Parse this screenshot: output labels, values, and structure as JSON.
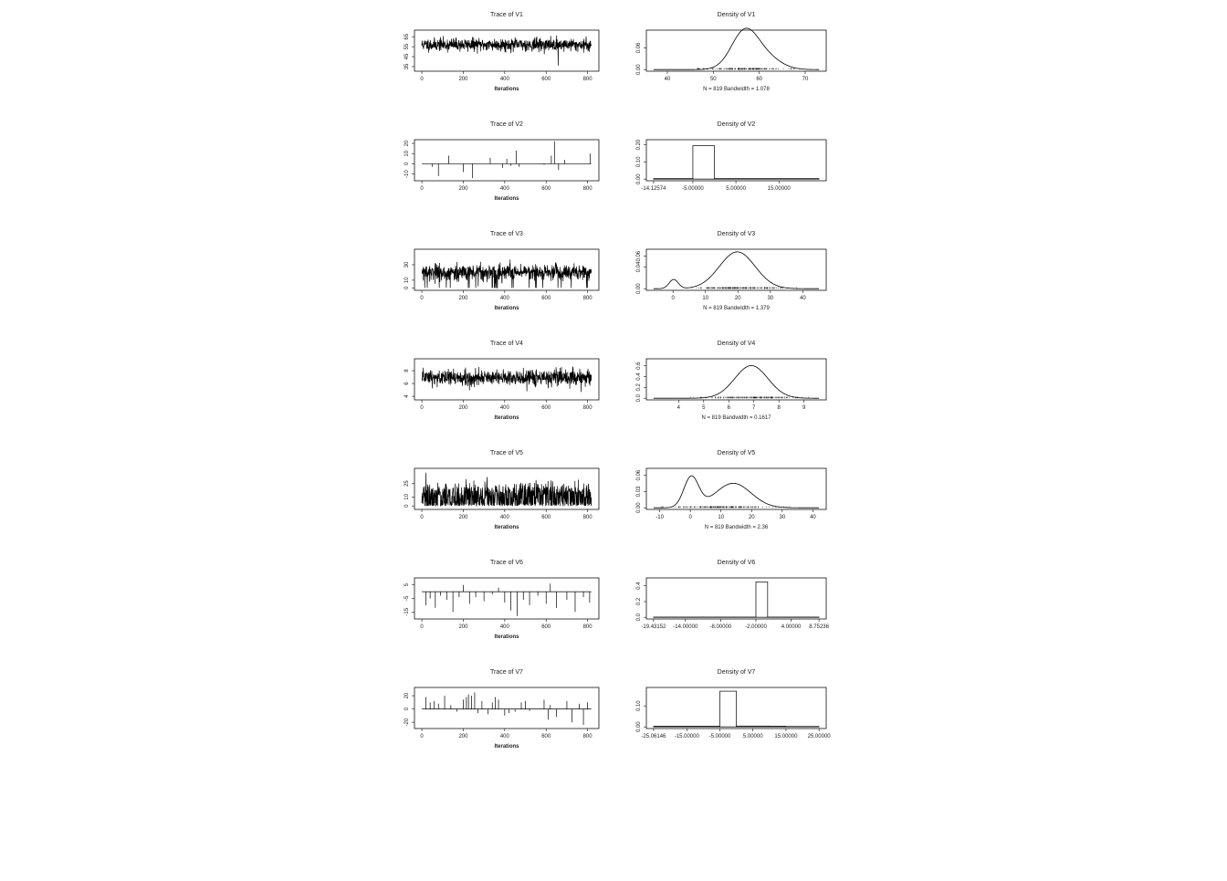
{
  "figure": {
    "trace_xlabel": "Iterations"
  },
  "chart_data": [
    {
      "type": "line",
      "kind": "trace",
      "title": "Trace of V1",
      "xlabel": "Iterations",
      "xlim": [
        0,
        819
      ],
      "ylim": [
        32,
        70
      ],
      "xticks": [
        0,
        200,
        400,
        600,
        800
      ],
      "yticks": [
        35,
        45,
        55,
        65
      ],
      "ytick_labels": [
        "35",
        "45",
        "55",
        "65"
      ],
      "model": {
        "type": "noise",
        "mean": 57,
        "sd": 3.2,
        "spikes": [
          [
            658,
            36
          ]
        ],
        "n": 819,
        "seed": 11
      }
    },
    {
      "type": "line",
      "kind": "density",
      "title": "Density of V1",
      "subtitle": "N = 819   Bandwidth = 1.078",
      "xlim": [
        37,
        73
      ],
      "ylim": [
        0,
        0.105
      ],
      "xticks": [
        40,
        50,
        60,
        70
      ],
      "xtick_labels": [
        "40",
        "50",
        "60",
        "70"
      ],
      "yticks": [
        0.0,
        0.06
      ],
      "ytick_labels": [
        "0.00",
        "0.06"
      ],
      "rug": {
        "center": 57,
        "spread": 5
      },
      "model": {
        "type": "mix",
        "components": [
          [
            0.75,
            56.8,
            2.9
          ],
          [
            0.25,
            61.5,
            3.2
          ]
        ],
        "scale": 1.0
      }
    },
    {
      "type": "line",
      "kind": "trace",
      "title": "Trace of V2",
      "xlabel": "Iterations",
      "xlim": [
        0,
        819
      ],
      "ylim": [
        -15,
        22
      ],
      "xticks": [
        0,
        200,
        400,
        600,
        800
      ],
      "yticks": [
        -10,
        0,
        10,
        20
      ],
      "ytick_labels": [
        "-10",
        "0",
        "10",
        "20"
      ],
      "model": {
        "type": "sparse",
        "base": 0,
        "spikes": [
          [
            50,
            -3
          ],
          [
            80,
            -12
          ],
          [
            130,
            8
          ],
          [
            200,
            -8
          ],
          [
            245,
            -14
          ],
          [
            330,
            6
          ],
          [
            390,
            -4
          ],
          [
            410,
            5
          ],
          [
            430,
            -2
          ],
          [
            455,
            13
          ],
          [
            470,
            -3
          ],
          [
            590,
            -1
          ],
          [
            625,
            8
          ],
          [
            640,
            22
          ],
          [
            660,
            -6
          ],
          [
            690,
            4
          ],
          [
            812,
            10
          ]
        ],
        "n": 819
      }
    },
    {
      "type": "bar",
      "kind": "density-hist",
      "title": "Density of V2",
      "xlim": [
        -14.12574,
        24.3
      ],
      "ylim": [
        0,
        0.22
      ],
      "xticks": [
        -14.12574,
        -5.0,
        5.0,
        15.0
      ],
      "xtick_labels": [
        "-14.12574",
        "-5.00000",
        "5.00000",
        "15.00000"
      ],
      "yticks": [
        0.0,
        0.1,
        0.2
      ],
      "ytick_labels": [
        "0.00",
        "0.10",
        "0.20"
      ],
      "bars": [
        {
          "x0": -14.12574,
          "x1": -5.0,
          "value": 0.003
        },
        {
          "x0": -5.0,
          "x1": 0.0,
          "value": 0.195
        },
        {
          "x0": 0.0,
          "x1": 24.3,
          "value": 0.003
        }
      ]
    },
    {
      "type": "line",
      "kind": "trace",
      "title": "Trace of V3",
      "xlabel": "Iterations",
      "xlim": [
        0,
        819
      ],
      "ylim": [
        -1,
        48
      ],
      "xticks": [
        0,
        200,
        400,
        600,
        800
      ],
      "yticks": [
        0,
        10,
        30
      ],
      "ytick_labels": [
        "0",
        "10",
        "30"
      ],
      "model": {
        "type": "noise",
        "mean": 20,
        "sd": 5,
        "dropProb": 0.04,
        "dropVal": 0,
        "n": 819,
        "seed": 33
      }
    },
    {
      "type": "line",
      "kind": "density",
      "title": "Density of V3",
      "subtitle": "N = 819   Bandwidth = 1.379",
      "xlim": [
        -6,
        45
      ],
      "ylim": [
        0,
        0.07
      ],
      "xticks": [
        0,
        10,
        20,
        30,
        40
      ],
      "xtick_labels": [
        "0",
        "10",
        "20",
        "30",
        "40"
      ],
      "yticks": [
        0.0,
        0.04,
        0.06
      ],
      "ytick_labels": [
        "0.00",
        "0.04",
        "0.06"
      ],
      "rug": {
        "center": 20,
        "spread": 7
      },
      "model": {
        "type": "mix",
        "components": [
          [
            0.06,
            0.2,
            1.4
          ],
          [
            0.94,
            19.8,
            5.5
          ]
        ],
        "scale": 1.0
      }
    },
    {
      "type": "line",
      "kind": "trace",
      "title": "Trace of V4",
      "xlabel": "Iterations",
      "xlim": [
        0,
        819
      ],
      "ylim": [
        3.7,
        9.6
      ],
      "xticks": [
        0,
        200,
        400,
        600,
        800
      ],
      "yticks": [
        4,
        6,
        8
      ],
      "ytick_labels": [
        "4",
        "6",
        "8"
      ],
      "model": {
        "type": "noise",
        "mean": 6.9,
        "sd": 0.65,
        "n": 819,
        "seed": 44
      }
    },
    {
      "type": "line",
      "kind": "density",
      "title": "Density of V4",
      "subtitle": "N = 819   Bandwidth = 0.1617",
      "xlim": [
        3,
        9.6
      ],
      "ylim": [
        0,
        0.7
      ],
      "xticks": [
        4,
        5,
        6,
        7,
        8,
        9
      ],
      "xtick_labels": [
        "4",
        "5",
        "6",
        "7",
        "8",
        "9"
      ],
      "yticks": [
        0.0,
        0.2,
        0.4,
        0.6
      ],
      "ytick_labels": [
        "0.0",
        "0.2",
        "0.4",
        "0.6"
      ],
      "rug": {
        "center": 6.9,
        "spread": 0.9
      },
      "model": {
        "type": "mix",
        "components": [
          [
            1.0,
            6.9,
            0.66
          ]
        ],
        "scale": 1.0
      }
    },
    {
      "type": "line",
      "kind": "trace",
      "title": "Trace of V5",
      "xlabel": "Iterations",
      "xlim": [
        0,
        819
      ],
      "ylim": [
        -2,
        40
      ],
      "xticks": [
        0,
        200,
        400,
        600,
        800
      ],
      "yticks": [
        0,
        10,
        25
      ],
      "ytick_labels": [
        "0",
        "10",
        "25"
      ],
      "model": {
        "type": "bimodal",
        "n": 819,
        "seed": 55
      }
    },
    {
      "type": "line",
      "kind": "density",
      "title": "Density of V5",
      "subtitle": "N = 819   Bandwidth = 2.36",
      "xlim": [
        -12,
        42
      ],
      "ylim": [
        0,
        0.07
      ],
      "xticks": [
        -10,
        0,
        10,
        20,
        30,
        40
      ],
      "xtick_labels": [
        "-10",
        "0",
        "10",
        "20",
        "30",
        "40"
      ],
      "yticks": [
        0.0,
        0.03,
        0.06
      ],
      "ytick_labels": [
        "0.00",
        "0.03",
        "0.06"
      ],
      "rug": {
        "center": 10,
        "spread": 9
      },
      "model": {
        "type": "mix",
        "components": [
          [
            0.34,
            0.3,
            2.4
          ],
          [
            0.66,
            14,
            5.8
          ]
        ],
        "scale": 1.0
      }
    },
    {
      "type": "line",
      "kind": "trace",
      "title": "Trace of V6",
      "xlabel": "Iterations",
      "xlim": [
        0,
        819
      ],
      "ylim": [
        -19,
        9
      ],
      "xticks": [
        0,
        200,
        400,
        600,
        800
      ],
      "yticks": [
        -15,
        -5,
        5
      ],
      "ytick_labels": [
        "-15",
        "-5",
        "5"
      ],
      "model": {
        "type": "sparse",
        "base": 0,
        "spikes": [
          [
            20,
            -10
          ],
          [
            40,
            -5
          ],
          [
            65,
            -12
          ],
          [
            90,
            -3
          ],
          [
            120,
            -6
          ],
          [
            150,
            -15
          ],
          [
            180,
            -4
          ],
          [
            200,
            5
          ],
          [
            230,
            -9
          ],
          [
            260,
            -4
          ],
          [
            300,
            -7
          ],
          [
            340,
            -2
          ],
          [
            370,
            3
          ],
          [
            400,
            -8
          ],
          [
            430,
            -14
          ],
          [
            460,
            -18
          ],
          [
            490,
            -6
          ],
          [
            520,
            -10
          ],
          [
            560,
            -3
          ],
          [
            600,
            -9
          ],
          [
            620,
            6
          ],
          [
            650,
            -12
          ],
          [
            700,
            -6
          ],
          [
            740,
            -15
          ],
          [
            780,
            -4
          ],
          [
            810,
            -8
          ]
        ],
        "n": 819
      }
    },
    {
      "type": "bar",
      "kind": "density-hist",
      "title": "Density of V6",
      "xlim": [
        -19.43152,
        8.75236
      ],
      "ylim": [
        0,
        0.48
      ],
      "xticks": [
        -19.43152,
        -14.0,
        -8.0,
        -2.0,
        4.0,
        8.75236
      ],
      "xtick_labels": [
        "-19.43152",
        "-14.00000",
        "-8.00000",
        "-2.00000",
        "4.00000",
        "8.75236"
      ],
      "yticks": [
        0.0,
        0.2,
        0.4
      ],
      "ytick_labels": [
        "0.0",
        "0.2",
        "0.4"
      ],
      "bars": [
        {
          "x0": -19.43152,
          "x1": -2.0,
          "value": 0.003
        },
        {
          "x0": -2.0,
          "x1": 0.0,
          "value": 0.45
        },
        {
          "x0": 0.0,
          "x1": 8.75236,
          "value": 0.003
        }
      ]
    },
    {
      "type": "line",
      "kind": "trace",
      "title": "Trace of V7",
      "xlabel": "Iterations",
      "xlim": [
        0,
        819
      ],
      "ylim": [
        -27,
        30
      ],
      "xticks": [
        0,
        200,
        400,
        600,
        800
      ],
      "yticks": [
        -20,
        0,
        20
      ],
      "ytick_labels": [
        "-20",
        "0",
        "20"
      ],
      "model": {
        "type": "sparse",
        "base": 0,
        "spikes": [
          [
            20,
            18
          ],
          [
            40,
            10
          ],
          [
            60,
            12
          ],
          [
            80,
            8
          ],
          [
            110,
            20
          ],
          [
            140,
            6
          ],
          [
            170,
            -4
          ],
          [
            200,
            14
          ],
          [
            215,
            18
          ],
          [
            225,
            22
          ],
          [
            240,
            20
          ],
          [
            255,
            25
          ],
          [
            270,
            -6
          ],
          [
            290,
            12
          ],
          [
            320,
            -8
          ],
          [
            340,
            10
          ],
          [
            355,
            18
          ],
          [
            370,
            14
          ],
          [
            400,
            -10
          ],
          [
            420,
            -6
          ],
          [
            450,
            -4
          ],
          [
            480,
            10
          ],
          [
            500,
            12
          ],
          [
            520,
            -3
          ],
          [
            590,
            14
          ],
          [
            610,
            -16
          ],
          [
            620,
            6
          ],
          [
            650,
            -12
          ],
          [
            700,
            12
          ],
          [
            725,
            -20
          ],
          [
            760,
            8
          ],
          [
            780,
            -24
          ],
          [
            800,
            10
          ]
        ],
        "n": 819
      }
    },
    {
      "type": "bar",
      "kind": "density-hist",
      "title": "Density of V7",
      "xlim": [
        -25.06146,
        25.0
      ],
      "ylim": [
        0,
        0.18
      ],
      "xticks": [
        -25.06146,
        -15.0,
        -5.0,
        5.0,
        15.0,
        25.0
      ],
      "xtick_labels": [
        "-25.06146",
        "-15.00000",
        "-5.00000",
        "5.00000",
        "15.00000",
        "25.00000"
      ],
      "yticks": [
        0.0,
        0.1
      ],
      "ytick_labels": [
        "0.00",
        "0.10"
      ],
      "bars": [
        {
          "x0": -25.06146,
          "x1": -5.0,
          "value": 0.003
        },
        {
          "x0": -5.0,
          "x1": 0.0,
          "value": 0.17
        },
        {
          "x0": 0.0,
          "x1": 10.0,
          "value": 0.004
        },
        {
          "x0": 10.0,
          "x1": 15.0,
          "value": 0.003
        },
        {
          "x0": 15.0,
          "x1": 25.0,
          "value": 0.002
        }
      ]
    }
  ]
}
